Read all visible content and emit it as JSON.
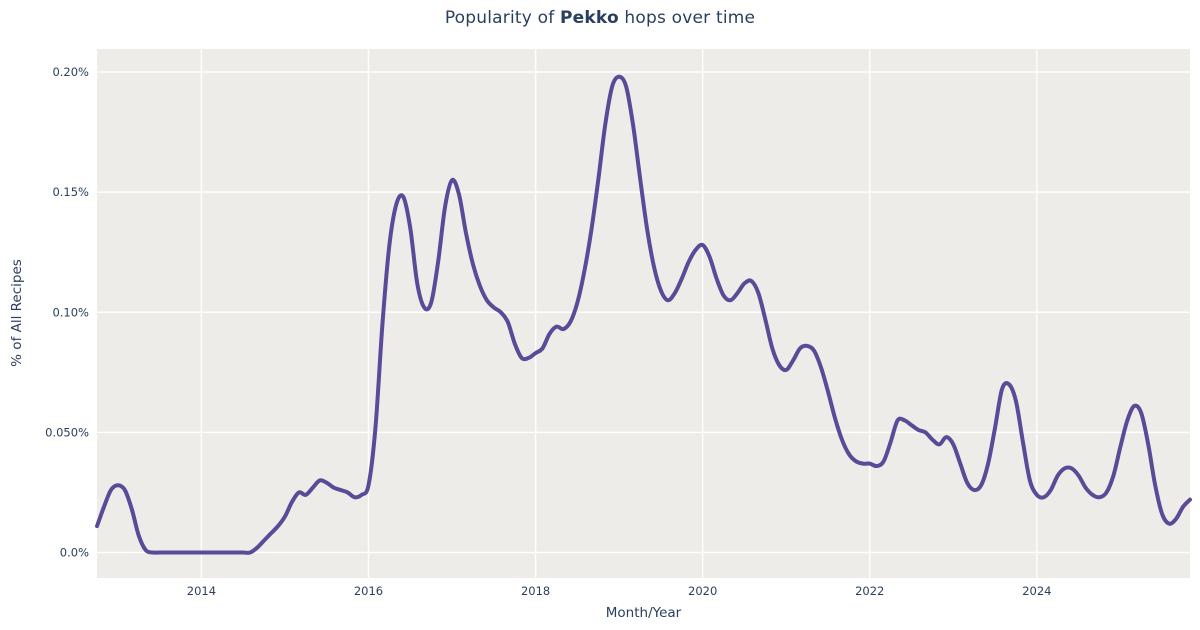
{
  "title": {
    "prefix": "Popularity of ",
    "emphasis": "Pekko",
    "suffix": " hops over time"
  },
  "chart_data": {
    "type": "line",
    "series_name": "Pekko",
    "title": "Popularity of Pekko hops over time",
    "xlabel": "Month/Year",
    "ylabel": "% of All Recipes",
    "legend_position": "none",
    "grid": true,
    "x_tick_labels": [
      "2014",
      "2016",
      "2018",
      "2020",
      "2022",
      "2024"
    ],
    "y_tick_labels": [
      "0.0%",
      "0.050%",
      "0.10%",
      "0.15%",
      "0.20%"
    ],
    "y_tick_values": [
      0,
      0.05,
      0.1,
      0.15,
      0.2
    ],
    "ylim": [
      -0.0105,
      0.21
    ],
    "x_range": [
      "2012-10",
      "2025-11"
    ],
    "value_unit": "percent of all recipes",
    "colors": {
      "line": "#5B4A98",
      "plot_background": "#EEECE9",
      "gridline": "#FFFFFF",
      "text": "#2a3f5f",
      "page_background": "#FFFFFF"
    },
    "months": [
      "2012-10",
      "2012-11",
      "2012-12",
      "2013-01",
      "2013-02",
      "2013-03",
      "2013-04",
      "2013-05",
      "2013-06",
      "2013-07",
      "2013-08",
      "2013-09",
      "2013-10",
      "2013-11",
      "2013-12",
      "2014-01",
      "2014-02",
      "2014-03",
      "2014-04",
      "2014-05",
      "2014-06",
      "2014-07",
      "2014-08",
      "2014-09",
      "2014-10",
      "2014-11",
      "2014-12",
      "2015-01",
      "2015-02",
      "2015-03",
      "2015-04",
      "2015-05",
      "2015-06",
      "2015-07",
      "2015-08",
      "2015-09",
      "2015-10",
      "2015-11",
      "2015-12",
      "2016-01",
      "2016-02",
      "2016-03",
      "2016-04",
      "2016-05",
      "2016-06",
      "2016-07",
      "2016-08",
      "2016-09",
      "2016-10",
      "2016-11",
      "2016-12",
      "2017-01",
      "2017-02",
      "2017-03",
      "2017-04",
      "2017-05",
      "2017-06",
      "2017-07",
      "2017-08",
      "2017-09",
      "2017-10",
      "2017-11",
      "2017-12",
      "2018-01",
      "2018-02",
      "2018-03",
      "2018-04",
      "2018-05",
      "2018-06",
      "2018-07",
      "2018-08",
      "2018-09",
      "2018-10",
      "2018-11",
      "2018-12",
      "2019-01",
      "2019-02",
      "2019-03",
      "2019-04",
      "2019-05",
      "2019-06",
      "2019-07",
      "2019-08",
      "2019-09",
      "2019-10",
      "2019-11",
      "2019-12",
      "2020-01",
      "2020-02",
      "2020-03",
      "2020-04",
      "2020-05",
      "2020-06",
      "2020-07",
      "2020-08",
      "2020-09",
      "2020-10",
      "2020-11",
      "2020-12",
      "2021-01",
      "2021-02",
      "2021-03",
      "2021-04",
      "2021-05",
      "2021-06",
      "2021-07",
      "2021-08",
      "2021-09",
      "2021-10",
      "2021-11",
      "2021-12",
      "2022-01",
      "2022-02",
      "2022-03",
      "2022-04",
      "2022-05",
      "2022-06",
      "2022-07",
      "2022-08",
      "2022-09",
      "2022-10",
      "2022-11",
      "2022-12",
      "2023-01",
      "2023-02",
      "2023-03",
      "2023-04",
      "2023-05",
      "2023-06",
      "2023-07",
      "2023-08",
      "2023-09",
      "2023-10",
      "2023-11",
      "2023-12",
      "2024-01",
      "2024-02",
      "2024-03",
      "2024-04",
      "2024-05",
      "2024-06",
      "2024-07",
      "2024-08",
      "2024-09",
      "2024-10",
      "2024-11",
      "2024-12",
      "2025-01",
      "2025-02",
      "2025-03",
      "2025-04",
      "2025-05",
      "2025-06",
      "2025-07",
      "2025-08",
      "2025-09",
      "2025-10",
      "2025-11"
    ],
    "values": [
      0.011,
      0.019,
      0.026,
      0.028,
      0.026,
      0.018,
      0.007,
      0.001,
      0.0,
      0.0,
      0.0,
      0.0,
      0.0,
      0.0,
      0.0,
      0.0,
      0.0,
      0.0,
      0.0,
      0.0,
      0.0,
      0.0,
      0.0,
      0.002,
      0.005,
      0.008,
      0.011,
      0.015,
      0.021,
      0.025,
      0.024,
      0.027,
      0.03,
      0.029,
      0.027,
      0.026,
      0.025,
      0.023,
      0.024,
      0.028,
      0.052,
      0.095,
      0.128,
      0.145,
      0.148,
      0.135,
      0.112,
      0.102,
      0.104,
      0.121,
      0.144,
      0.155,
      0.149,
      0.133,
      0.12,
      0.111,
      0.105,
      0.102,
      0.1,
      0.096,
      0.087,
      0.081,
      0.081,
      0.083,
      0.085,
      0.091,
      0.094,
      0.093,
      0.096,
      0.104,
      0.117,
      0.134,
      0.155,
      0.178,
      0.194,
      0.198,
      0.194,
      0.178,
      0.156,
      0.135,
      0.119,
      0.109,
      0.105,
      0.108,
      0.114,
      0.121,
      0.126,
      0.128,
      0.123,
      0.114,
      0.107,
      0.105,
      0.108,
      0.112,
      0.113,
      0.108,
      0.097,
      0.085,
      0.078,
      0.076,
      0.08,
      0.085,
      0.086,
      0.084,
      0.077,
      0.067,
      0.056,
      0.047,
      0.041,
      0.038,
      0.037,
      0.037,
      0.036,
      0.038,
      0.046,
      0.055,
      0.055,
      0.053,
      0.051,
      0.05,
      0.047,
      0.045,
      0.048,
      0.045,
      0.037,
      0.029,
      0.026,
      0.028,
      0.037,
      0.052,
      0.068,
      0.07,
      0.063,
      0.046,
      0.03,
      0.024,
      0.023,
      0.026,
      0.032,
      0.035,
      0.035,
      0.032,
      0.027,
      0.024,
      0.023,
      0.025,
      0.032,
      0.044,
      0.055,
      0.061,
      0.058,
      0.045,
      0.028,
      0.016,
      0.012,
      0.014,
      0.019,
      0.022
    ]
  }
}
